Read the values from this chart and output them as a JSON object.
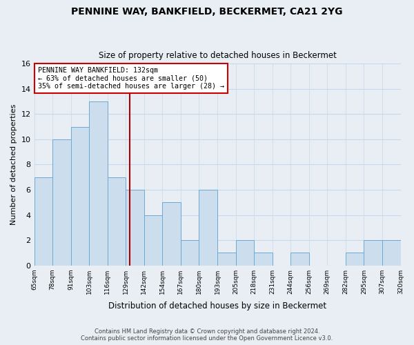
{
  "title": "PENNINE WAY, BANKFIELD, BECKERMET, CA21 2YG",
  "subtitle": "Size of property relative to detached houses in Beckermet",
  "xlabel": "Distribution of detached houses by size in Beckermet",
  "ylabel": "Number of detached properties",
  "footer_line1": "Contains HM Land Registry data © Crown copyright and database right 2024.",
  "footer_line2": "Contains public sector information licensed under the Open Government Licence v3.0.",
  "bin_labels": [
    "65sqm",
    "78sqm",
    "91sqm",
    "103sqm",
    "116sqm",
    "129sqm",
    "142sqm",
    "154sqm",
    "167sqm",
    "180sqm",
    "193sqm",
    "205sqm",
    "218sqm",
    "231sqm",
    "244sqm",
    "256sqm",
    "269sqm",
    "282sqm",
    "295sqm",
    "307sqm",
    "320sqm"
  ],
  "bar_heights": [
    7,
    10,
    11,
    13,
    7,
    6,
    4,
    5,
    2,
    6,
    1,
    2,
    1,
    0,
    1,
    0,
    0,
    1,
    2,
    2
  ],
  "bar_color": "#ccdded",
  "bar_edge_color": "#6aaad4",
  "annotation_line1": "PENNINE WAY BANKFIELD: 132sqm",
  "annotation_line2": "← 63% of detached houses are smaller (50)",
  "annotation_line3": "35% of semi-detached houses are larger (28) →",
  "ylim": [
    0,
    16
  ],
  "yticks": [
    0,
    2,
    4,
    6,
    8,
    10,
    12,
    14,
    16
  ],
  "annotation_box_color": "#ffffff",
  "annotation_box_edge": "#cc0000",
  "marker_line_color": "#aa0000",
  "grid_color": "#c8d8e8",
  "background_color": "#e8eef4",
  "plot_bg_color": "#e8eef4"
}
